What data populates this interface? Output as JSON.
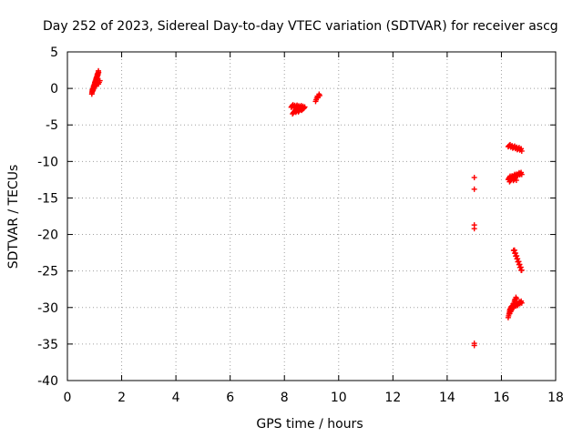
{
  "chart_data": {
    "type": "scatter",
    "title": "Day 252 of 2023, Sidereal Day-to-day VTEC variation (SDTVAR) for receiver ascg",
    "xlabel": "GPS time / hours",
    "ylabel": "SDTVAR / TECUs",
    "xlim": [
      0,
      18
    ],
    "ylim": [
      -40,
      5
    ],
    "xticks": [
      0,
      2,
      4,
      6,
      8,
      10,
      12,
      14,
      16,
      18
    ],
    "yticks": [
      5,
      0,
      -5,
      -10,
      -15,
      -20,
      -25,
      -30,
      -35,
      -40
    ],
    "grid": true,
    "marker": "plus",
    "color": "#ff0000",
    "series": [
      {
        "name": "SDTVAR",
        "segments": [
          {
            "x0": 0.9,
            "y0": -0.6,
            "x1": 1.15,
            "y1": 2.3,
            "n": 40
          },
          {
            "x0": 0.95,
            "y0": 0.0,
            "x1": 1.2,
            "y1": 1.0,
            "n": 10
          },
          {
            "x0": 8.25,
            "y0": -2.4,
            "x1": 8.75,
            "y1": -2.6,
            "n": 24
          },
          {
            "x0": 8.3,
            "y0": -3.3,
            "x1": 8.7,
            "y1": -2.8,
            "n": 14
          },
          {
            "x0": 9.15,
            "y0": -1.6,
            "x1": 9.3,
            "y1": -0.8,
            "n": 8
          },
          {
            "x0": 16.25,
            "y0": -7.8,
            "x1": 16.75,
            "y1": -8.4,
            "n": 22
          },
          {
            "x0": 16.25,
            "y0": -12.3,
            "x1": 16.75,
            "y1": -11.6,
            "n": 22
          },
          {
            "x0": 16.3,
            "y0": -12.6,
            "x1": 16.55,
            "y1": -12.4,
            "n": 8
          },
          {
            "x0": 16.45,
            "y0": -22.0,
            "x1": 16.75,
            "y1": -25.0,
            "n": 28
          },
          {
            "x0": 16.25,
            "y0": -31.2,
            "x1": 16.55,
            "y1": -28.6,
            "n": 22
          },
          {
            "x0": 16.3,
            "y0": -30.2,
            "x1": 16.75,
            "y1": -29.2,
            "n": 22
          }
        ],
        "points": [
          [
            15.0,
            -12.2
          ],
          [
            15.0,
            -13.8
          ],
          [
            15.0,
            -18.7
          ],
          [
            15.0,
            -19.2
          ],
          [
            15.0,
            -34.9
          ],
          [
            15.0,
            -35.2
          ]
        ]
      }
    ]
  }
}
